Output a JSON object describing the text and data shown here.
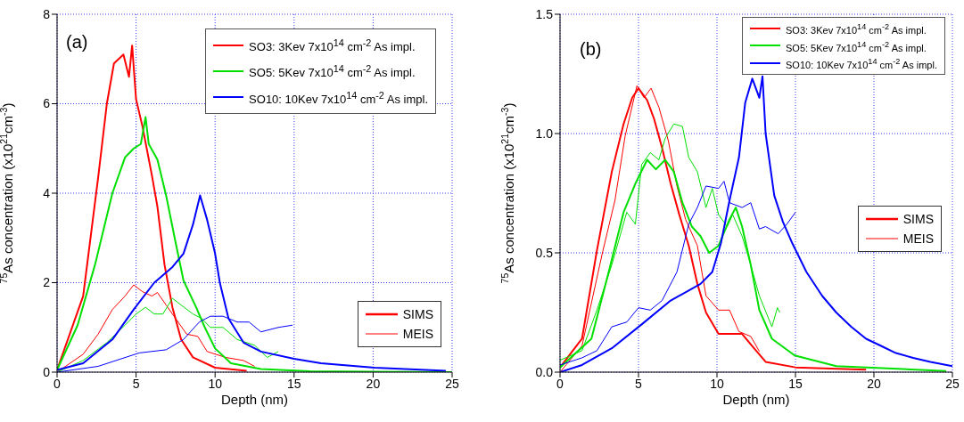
{
  "chart_data": [
    {
      "type": "line",
      "xlabel": "Depth (nm)",
      "ylabel": "$^{75}$As concentration (x10$^{21}$cm$^{-3}$)",
      "xlim": [
        0,
        25
      ],
      "xticks": [
        0,
        5,
        10,
        15,
        20,
        25
      ],
      "ylim": [
        0,
        8
      ],
      "yticks": [
        0,
        2,
        4,
        6,
        8
      ],
      "grid": true,
      "legend": "top right",
      "annotations": [
        "(a)",
        "SIMS",
        "MEIS"
      ],
      "series": [
        {
          "name": "SO3: 3Kev 7x10$^{14}$ cm$^{-2}$ As impl.",
          "color": "#ff0000",
          "x": [
            0,
            1.65,
            2.6,
            3.15,
            3.6,
            4.2,
            4.55,
            4.75,
            5.0,
            5.4,
            6.0,
            6.35,
            6.8,
            7.3,
            7.85,
            8.6,
            10,
            12
          ],
          "values": [
            0.05,
            1.7,
            4.35,
            6.0,
            6.9,
            7.1,
            6.6,
            7.3,
            6.1,
            5.5,
            4.4,
            3.7,
            2.4,
            1.45,
            0.73,
            0.33,
            0.1,
            0.03
          ]
        },
        {
          "color": "#ff0000",
          "x": [
            0,
            1.65,
            2.6,
            3.5,
            4.3,
            4.85,
            5.4,
            6.0,
            6.35,
            6.9,
            7.5,
            8.2,
            8.9,
            9.5,
            10.65,
            11.8,
            12.5
          ],
          "values": [
            0,
            0.4,
            0.85,
            1.4,
            1.7,
            1.95,
            1.8,
            1.7,
            1.78,
            1.5,
            1.2,
            0.85,
            0.8,
            0.46,
            0.33,
            0.26,
            0.13
          ]
        },
        {
          "name": "SO5: 5Kev 7x10$^{14}$ cm$^{-2}$ As impl.",
          "color": "#00e000",
          "x": [
            0,
            1.3,
            2.4,
            3.5,
            4.3,
            4.85,
            5.3,
            5.6,
            5.8,
            6.35,
            6.9,
            7.5,
            8.0,
            8.8,
            9.35,
            10,
            11,
            12.9,
            16,
            20,
            25
          ],
          "values": [
            0.05,
            1.05,
            2.4,
            4.0,
            4.8,
            5.0,
            5.1,
            5.7,
            5.1,
            4.75,
            3.95,
            2.9,
            2.05,
            1.45,
            1.0,
            0.53,
            0.2,
            0.07,
            0.02,
            0.01,
            0
          ]
        },
        {
          "color": "#00e000",
          "x": [
            0,
            1.65,
            3.15,
            4.3,
            5.0,
            5.6,
            6.15,
            6.7,
            7.3,
            7.85,
            8.6,
            9.15,
            9.7,
            10.5,
            11.4,
            12.5,
            13.3,
            14.0
          ],
          "values": [
            0,
            0.26,
            0.66,
            1.05,
            1.3,
            1.45,
            1.3,
            1.3,
            1.65,
            1.5,
            1.3,
            1.2,
            1.0,
            1.0,
            0.73,
            0.6,
            0.33,
            0.46
          ]
        },
        {
          "name": "SO10: 10Kev 7x10$^{14}$ cm$^{-2}$ As impl.",
          "color": "#0000ff",
          "x": [
            0,
            1.65,
            3.5,
            4.85,
            6.15,
            7.3,
            8.0,
            8.6,
            9.05,
            9.5,
            10,
            10.3,
            10.85,
            11.8,
            12.9,
            15,
            16.7,
            20.1,
            24.6
          ],
          "values": [
            0.05,
            0.2,
            0.73,
            1.4,
            2.0,
            2.35,
            2.65,
            3.3,
            3.95,
            3.4,
            2.65,
            2.0,
            1.2,
            0.66,
            0.46,
            0.3,
            0.2,
            0.1,
            0.03
          ]
        },
        {
          "color": "#0000ff",
          "x": [
            0,
            2.6,
            5.2,
            6.9,
            8.0,
            9.0,
            9.7,
            10.5,
            11.4,
            12.15,
            12.9,
            14.0,
            14.9
          ],
          "values": [
            0,
            0.13,
            0.43,
            0.5,
            0.73,
            1.12,
            1.25,
            1.25,
            1.12,
            1.12,
            0.9,
            1.0,
            1.05
          ]
        }
      ]
    },
    {
      "type": "line",
      "xlabel": "Depth (nm)",
      "ylabel": "$^{75}$As concentration (x10$^{21}$cm$^{-3}$)",
      "xlim": [
        0,
        25
      ],
      "xticks": [
        0,
        5,
        10,
        15,
        20,
        25
      ],
      "ylim": [
        0,
        1.5
      ],
      "yticks": [
        {
          "value": 0,
          "label": "0.0"
        },
        {
          "value": 0.5,
          "label": "0.5"
        },
        {
          "value": 1,
          "label": "1.0"
        },
        {
          "value": 1.5,
          "label": "1.5"
        }
      ],
      "grid": true,
      "legend": "top right",
      "annotations": [
        "(b)",
        "SIMS",
        "MEIS"
      ],
      "series": [
        {
          "name": "SO3: 3Kev 7x10$^{14}$ cm$^{-2}$ As impl.",
          "color": "#ff0000",
          "x": [
            0,
            1.4,
            2.35,
            3.3,
            4.05,
            4.6,
            5.0,
            5.55,
            6.0,
            6.5,
            7.05,
            7.6,
            8.2,
            8.75,
            9.3,
            10.1,
            10.8,
            11.6,
            12.3,
            13.1,
            15,
            19.5
          ],
          "values": [
            0.02,
            0.14,
            0.51,
            0.84,
            1.04,
            1.15,
            1.19,
            1.14,
            1.06,
            0.94,
            0.79,
            0.66,
            0.53,
            0.37,
            0.25,
            0.16,
            0.16,
            0.16,
            0.105,
            0.043,
            0.02,
            0.01
          ]
        },
        {
          "color": "#ff0000",
          "x": [
            0,
            1.4,
            2.7,
            3.5,
            4.15,
            4.9,
            5.35,
            5.8,
            6.3,
            6.9,
            7.45,
            8.0,
            8.75,
            9.3,
            10.1,
            10.8,
            11.4,
            12.15,
            12.7
          ],
          "values": [
            0,
            0.11,
            0.5,
            0.72,
            0.99,
            1.2,
            1.15,
            1.19,
            1.11,
            0.97,
            0.78,
            0.64,
            0.53,
            0.32,
            0.26,
            0.26,
            0.17,
            0.15,
            0.087
          ]
        },
        {
          "name": "SO5: 5Kev 7x10$^{14}$ cm$^{-2}$ As impl.",
          "color": "#00e000",
          "x": [
            0,
            2.0,
            3.1,
            4.05,
            4.8,
            5.55,
            6.1,
            6.7,
            7.25,
            7.8,
            8.4,
            8.95,
            9.5,
            10.1,
            10.8,
            11.2,
            11.6,
            12.15,
            12.7,
            13.5,
            14.95,
            17.6,
            24.6
          ],
          "values": [
            0.02,
            0.14,
            0.42,
            0.67,
            0.79,
            0.89,
            0.85,
            0.89,
            0.84,
            0.71,
            0.61,
            0.57,
            0.5,
            0.53,
            0.64,
            0.69,
            0.61,
            0.45,
            0.26,
            0.14,
            0.07,
            0.025,
            0.005
          ]
        },
        {
          "color": "#00e000",
          "x": [
            0,
            1.4,
            2.35,
            3.3,
            4.25,
            4.8,
            5.2,
            5.75,
            6.3,
            6.7,
            7.25,
            7.8,
            8.2,
            8.75,
            9.3,
            9.7,
            10.1,
            10.65,
            11.0,
            11.6,
            12.15,
            12.7,
            13.5,
            13.85,
            14.0
          ],
          "values": [
            0.05,
            0.09,
            0.26,
            0.45,
            0.67,
            0.62,
            0.87,
            0.92,
            0.89,
            0.98,
            1.04,
            1.03,
            0.9,
            0.84,
            0.69,
            0.77,
            0.66,
            0.61,
            0.66,
            0.57,
            0.45,
            0.32,
            0.19,
            0.27,
            0.25
          ]
        },
        {
          "name": "SO10: 10Kev 7x10$^{14}$ cm$^{-2}$ As impl.",
          "color": "#0000ff",
          "x": [
            0,
            1.4,
            3.3,
            5.2,
            7.05,
            8.95,
            9.7,
            10.25,
            10.8,
            11.4,
            11.8,
            12.25,
            12.7,
            12.9,
            13.1,
            13.65,
            14.2,
            14.8,
            15.1,
            15.7,
            16.7,
            17.6,
            18.55,
            19.5,
            20.45,
            21.4,
            22.5,
            23.6,
            25
          ],
          "values": [
            0,
            0.03,
            0.1,
            0.2,
            0.3,
            0.37,
            0.42,
            0.54,
            0.72,
            0.9,
            1.13,
            1.23,
            1.15,
            1.24,
            1.0,
            0.74,
            0.63,
            0.54,
            0.5,
            0.42,
            0.32,
            0.25,
            0.19,
            0.14,
            0.11,
            0.08,
            0.06,
            0.043,
            0.025
          ]
        },
        {
          "color": "#0000ff",
          "x": [
            0,
            1.4,
            2.35,
            3.3,
            4.25,
            5.0,
            5.75,
            6.5,
            7.45,
            8.2,
            8.75,
            9.3,
            10.1,
            10.45,
            10.8,
            11.6,
            12.15,
            12.7,
            13.1,
            13.9,
            14.45,
            15.0
          ],
          "values": [
            0.03,
            0.06,
            0.09,
            0.19,
            0.21,
            0.27,
            0.26,
            0.3,
            0.42,
            0.62,
            0.69,
            0.78,
            0.77,
            0.8,
            0.71,
            0.69,
            0.71,
            0.6,
            0.61,
            0.58,
            0.62,
            0.67
          ]
        }
      ]
    }
  ]
}
